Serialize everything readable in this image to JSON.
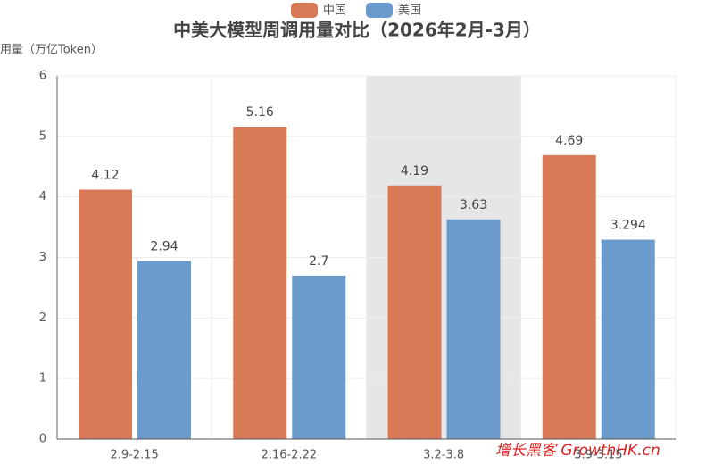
{
  "chart_data": {
    "type": "bar",
    "title": "中美大模型周调用量对比（2026年2月-3月）",
    "y_label": "周调用量（万亿Token）",
    "categories": [
      "2.9-2.15",
      "2.16-2.22",
      "3.2-3.8",
      "3.9-3.15"
    ],
    "series": [
      {
        "name": "中国",
        "color": "#d87a55",
        "values": [
          4.12,
          5.16,
          4.19,
          4.69
        ]
      },
      {
        "name": "美国",
        "color": "#6b9bcd",
        "values": [
          2.94,
          2.7,
          3.63,
          3.294
        ]
      }
    ],
    "ylim": [
      0,
      6
    ],
    "yticks": [
      0,
      1,
      2,
      3,
      4,
      5,
      6
    ],
    "grid": true,
    "legend": "top",
    "hover_index": 2
  },
  "watermark": "增长黑客 GrowthHK.cn"
}
